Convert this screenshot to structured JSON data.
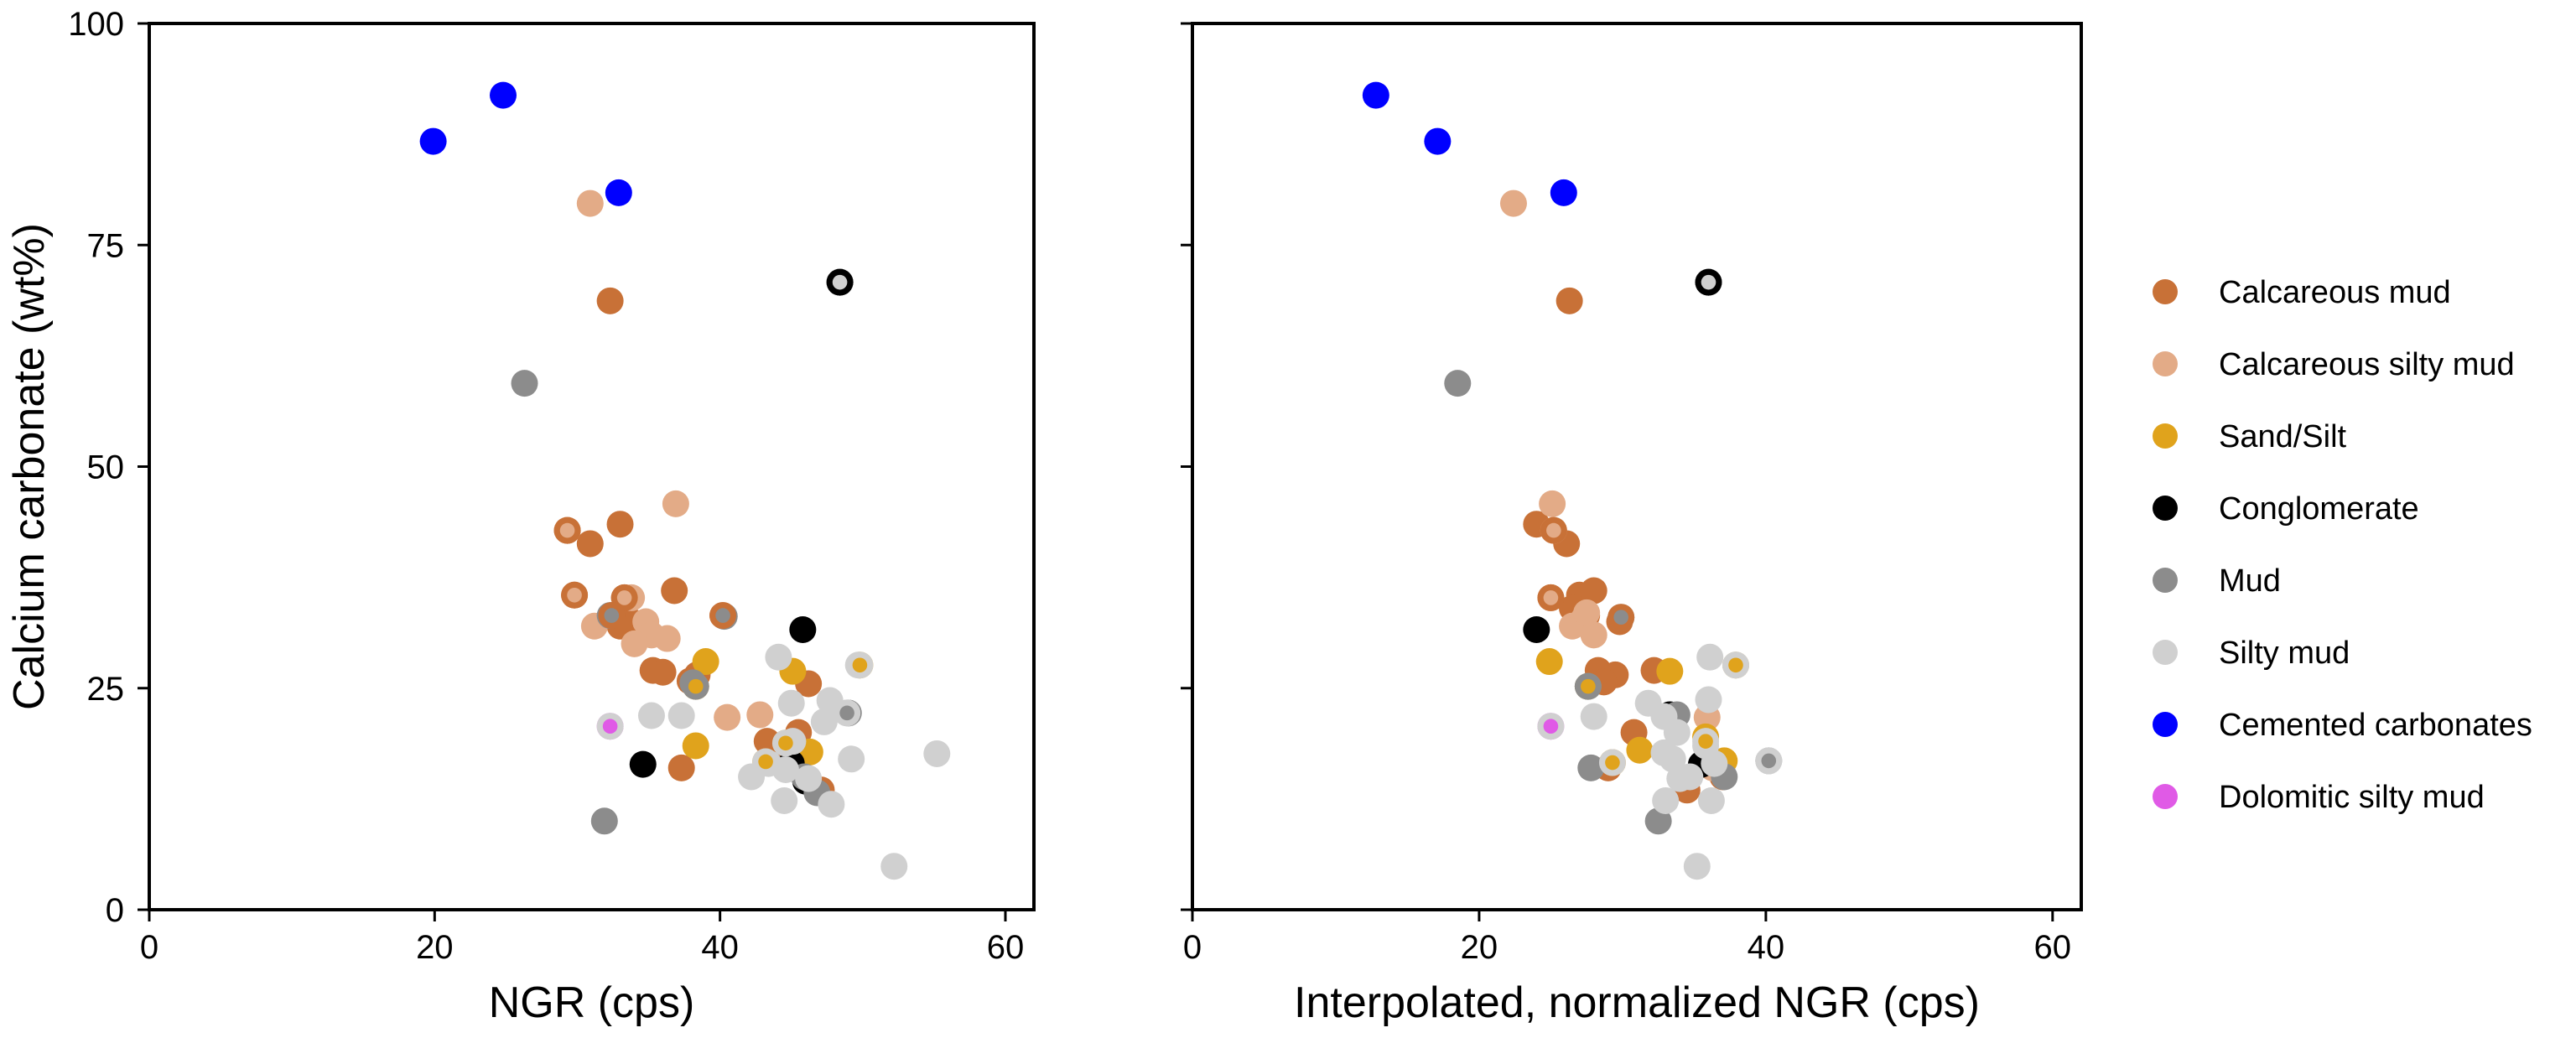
{
  "chart_data": [
    {
      "type": "scatter",
      "xlabel": "NGR (cps)",
      "ylabel": "Calcium carbonate (wt%)",
      "xlim": [
        0,
        62
      ],
      "ylim": [
        0,
        100
      ],
      "xticks": [
        "0",
        "20",
        "40",
        "60"
      ],
      "yticks": [
        "0",
        "25",
        "50",
        "75",
        "100"
      ],
      "series": [
        {
          "name": "Calcareous mud",
          "color": "#c87137",
          "points": [
            [
              32.3,
              68.7
            ],
            [
              29.3,
              42.8
            ],
            [
              30.9,
              41.3
            ],
            [
              33.0,
              43.5
            ],
            [
              29.8,
              35.5
            ],
            [
              32.4,
              33.2
            ],
            [
              33.3,
              35.2
            ],
            [
              33.8,
              32.5
            ],
            [
              34.3,
              30.8
            ],
            [
              36.8,
              36.0
            ],
            [
              38.4,
              26.5
            ],
            [
              35.3,
              27.0
            ],
            [
              36.0,
              26.8
            ],
            [
              37.3,
              16.0
            ],
            [
              40.2,
              33.2
            ],
            [
              43.3,
              19.0
            ],
            [
              44.3,
              17.5
            ],
            [
              46.2,
              25.5
            ],
            [
              45.5,
              20.0
            ],
            [
              47.1,
              13.5
            ],
            [
              33.0,
              32.0
            ],
            [
              37.9,
              25.8
            ]
          ]
        },
        {
          "name": "Calcareous silty mud",
          "color": "#e3ab87",
          "points": [
            [
              30.9,
              79.7
            ],
            [
              36.9,
              45.8
            ],
            [
              29.3,
              42.8
            ],
            [
              31.2,
              32.0
            ],
            [
              33.8,
              35.2
            ],
            [
              34.8,
              32.5
            ],
            [
              35.2,
              31.0
            ],
            [
              36.3,
              30.6
            ],
            [
              40.5,
              21.7
            ],
            [
              42.8,
              22.0
            ],
            [
              34.0,
              30.0
            ]
          ]
        },
        {
          "name": "Sand/Silt",
          "color": "#e0a31c",
          "points": [
            [
              38.3,
              18.5
            ],
            [
              39.0,
              28.0
            ],
            [
              38.3,
              25.2
            ],
            [
              45.1,
              26.9
            ],
            [
              46.3,
              17.8
            ],
            [
              43.2,
              16.7
            ],
            [
              44.6,
              18.8
            ],
            [
              49.8,
              27.6
            ],
            [
              45.4,
              16.0
            ]
          ]
        },
        {
          "name": "Conglomerate",
          "color": "#000000",
          "points": [
            [
              45.8,
              31.6
            ],
            [
              34.6,
              16.4
            ],
            [
              48.4,
              70.8
            ],
            [
              45.0,
              16.5
            ],
            [
              46.0,
              14.5
            ]
          ]
        },
        {
          "name": "Mud",
          "color": "#8c8c8c",
          "points": [
            [
              26.3,
              59.4
            ],
            [
              31.9,
              10.0
            ],
            [
              49.0,
              22.2
            ],
            [
              32.3,
              33.2
            ],
            [
              38.1,
              25.6
            ],
            [
              45.9,
              15.0
            ],
            [
              46.8,
              13.2
            ],
            [
              40.3,
              33.1
            ]
          ]
        },
        {
          "name": "Silty mud",
          "color": "#d0d0d0",
          "points": [
            [
              48.4,
              70.8
            ],
            [
              52.2,
              4.9
            ],
            [
              55.2,
              17.6
            ],
            [
              49.2,
              17.0
            ],
            [
              47.8,
              11.9
            ],
            [
              47.7,
              23.6
            ],
            [
              47.3,
              21.2
            ],
            [
              44.5,
              12.3
            ],
            [
              44.1,
              28.5
            ],
            [
              45.0,
              23.3
            ],
            [
              35.2,
              21.9
            ],
            [
              37.3,
              21.9
            ],
            [
              42.2,
              15.0
            ],
            [
              43.4,
              16.5
            ],
            [
              44.6,
              15.8
            ],
            [
              46.2,
              14.8
            ],
            [
              48.9,
              22.2
            ],
            [
              49.7,
              27.6
            ],
            [
              45.1,
              19.0
            ]
          ]
        },
        {
          "name": "Cemented carbonates",
          "color": "#0000ff",
          "points": [
            [
              19.9,
              86.7
            ],
            [
              24.8,
              91.9
            ],
            [
              32.9,
              80.9
            ]
          ]
        },
        {
          "name": "Dolomitic silty mud",
          "color": "#e05ae6",
          "points": [
            [
              32.3,
              20.7
            ]
          ]
        }
      ],
      "rings": [
        {
          "edge": "#c87137",
          "fill": "#e3ab87",
          "point": [
            29.3,
            42.8
          ]
        },
        {
          "edge": "#c87137",
          "fill": "#e3ab87",
          "point": [
            29.8,
            35.5
          ]
        },
        {
          "edge": "#c87137",
          "fill": "#e3ab87",
          "point": [
            33.3,
            35.2
          ]
        },
        {
          "edge": "#c87137",
          "fill": "#8c8c8c",
          "point": [
            32.4,
            33.2
          ]
        },
        {
          "edge": "#c87137",
          "fill": "#8c8c8c",
          "point": [
            40.2,
            33.2
          ]
        },
        {
          "edge": "#8c8c8c",
          "fill": "#e0a31c",
          "point": [
            38.3,
            25.2
          ]
        },
        {
          "edge": "#d0d0d0",
          "fill": "#e0a31c",
          "point": [
            43.2,
            16.7
          ]
        },
        {
          "edge": "#d0d0d0",
          "fill": "#e0a31c",
          "point": [
            44.6,
            18.8
          ]
        },
        {
          "edge": "#d0d0d0",
          "fill": "#e0a31c",
          "point": [
            49.8,
            27.6
          ]
        },
        {
          "edge": "#d0d0d0",
          "fill": "#8c8c8c",
          "point": [
            48.9,
            22.2
          ]
        },
        {
          "edge": "#d0d0d0",
          "fill": "#e05ae6",
          "point": [
            32.3,
            20.7
          ]
        },
        {
          "edge": "#000000",
          "fill": "#d0d0d0",
          "point": [
            48.4,
            70.8
          ]
        }
      ]
    },
    {
      "type": "scatter",
      "xlabel": "Interpolated, normalized NGR (cps)",
      "ylabel": "",
      "xlim": [
        0,
        62
      ],
      "ylim": [
        0,
        100
      ],
      "xticks": [
        "0",
        "20",
        "40",
        "60"
      ],
      "yticks": [],
      "series": [
        {
          "name": "Calcareous mud",
          "color": "#c87137",
          "points": [
            [
              26.3,
              68.7
            ],
            [
              24.0,
              43.5
            ],
            [
              26.1,
              41.3
            ],
            [
              25.0,
              35.2
            ],
            [
              27.0,
              35.5
            ],
            [
              28.0,
              36.0
            ],
            [
              27.5,
              33.2
            ],
            [
              29.8,
              32.5
            ],
            [
              28.3,
              27.0
            ],
            [
              29.5,
              26.5
            ],
            [
              28.7,
              25.7
            ],
            [
              29.0,
              16.0
            ],
            [
              30.8,
              20.0
            ],
            [
              32.2,
              27.0
            ],
            [
              34.5,
              13.5
            ],
            [
              37.0,
              15.0
            ],
            [
              26.5,
              34.0
            ]
          ]
        },
        {
          "name": "Calcareous silty mud",
          "color": "#e3ab87",
          "points": [
            [
              22.4,
              79.7
            ],
            [
              25.1,
              45.8
            ],
            [
              25.2,
              42.8
            ],
            [
              26.5,
              32.0
            ],
            [
              27.3,
              32.8
            ],
            [
              28.0,
              31.0
            ],
            [
              27.5,
              33.5
            ],
            [
              35.9,
              21.7
            ],
            [
              36.3,
              16.0
            ]
          ]
        },
        {
          "name": "Sand/Silt",
          "color": "#e0a31c",
          "points": [
            [
              24.9,
              28.0
            ],
            [
              33.3,
              26.9
            ],
            [
              31.2,
              18.0
            ],
            [
              35.8,
              19.5
            ],
            [
              37.1,
              16.8
            ],
            [
              37.9,
              27.6
            ],
            [
              29.3,
              16.6
            ],
            [
              27.6,
              25.2
            ]
          ]
        },
        {
          "name": "Conglomerate",
          "color": "#000000",
          "points": [
            [
              24.0,
              31.6
            ],
            [
              36.0,
              70.8
            ],
            [
              35.5,
              16.4
            ],
            [
              33.3,
              22.0
            ]
          ]
        },
        {
          "name": "Mud",
          "color": "#8c8c8c",
          "points": [
            [
              18.5,
              59.4
            ],
            [
              32.5,
              10.0
            ],
            [
              40.2,
              16.8
            ],
            [
              27.6,
              25.2
            ],
            [
              29.9,
              33.0
            ],
            [
              27.8,
              16.0
            ],
            [
              37.1,
              15.0
            ],
            [
              33.8,
              22.0
            ]
          ]
        },
        {
          "name": "Silty mud",
          "color": "#d0d0d0",
          "points": [
            [
              36.0,
              70.8
            ],
            [
              35.2,
              4.9
            ],
            [
              36.2,
              12.3
            ],
            [
              36.1,
              28.5
            ],
            [
              36.0,
              23.7
            ],
            [
              37.9,
              27.6
            ],
            [
              31.8,
              23.3
            ],
            [
              32.9,
              21.8
            ],
            [
              33.0,
              12.3
            ],
            [
              33.5,
              17.0
            ],
            [
              32.9,
              17.7
            ],
            [
              35.8,
              18.5
            ],
            [
              34.7,
              15.0
            ],
            [
              36.4,
              16.5
            ],
            [
              28.0,
              21.8
            ],
            [
              33.8,
              20.0
            ],
            [
              34.0,
              14.8
            ],
            [
              40.2,
              16.8
            ]
          ]
        },
        {
          "name": "Cemented carbonates",
          "color": "#0000ff",
          "points": [
            [
              12.8,
              91.9
            ],
            [
              17.1,
              86.7
            ],
            [
              25.9,
              80.9
            ]
          ]
        },
        {
          "name": "Dolomitic silty mud",
          "color": "#e05ae6",
          "points": [
            [
              25.0,
              20.7
            ]
          ]
        }
      ],
      "rings": [
        {
          "edge": "#c87137",
          "fill": "#e3ab87",
          "point": [
            25.2,
            42.8
          ]
        },
        {
          "edge": "#c87137",
          "fill": "#e3ab87",
          "point": [
            25.0,
            35.2
          ]
        },
        {
          "edge": "#c87137",
          "fill": "#8c8c8c",
          "point": [
            29.9,
            33.0
          ]
        },
        {
          "edge": "#8c8c8c",
          "fill": "#e0a31c",
          "point": [
            27.6,
            25.2
          ]
        },
        {
          "edge": "#d0d0d0",
          "fill": "#e0a31c",
          "point": [
            37.9,
            27.6
          ]
        },
        {
          "edge": "#d0d0d0",
          "fill": "#e0a31c",
          "point": [
            35.8,
            19.0
          ]
        },
        {
          "edge": "#d0d0d0",
          "fill": "#e0a31c",
          "point": [
            29.3,
            16.6
          ]
        },
        {
          "edge": "#d0d0d0",
          "fill": "#8c8c8c",
          "point": [
            40.2,
            16.8
          ]
        },
        {
          "edge": "#d0d0d0",
          "fill": "#e05ae6",
          "point": [
            25.0,
            20.7
          ]
        },
        {
          "edge": "#000000",
          "fill": "#d0d0d0",
          "point": [
            36.0,
            70.8
          ]
        }
      ]
    }
  ],
  "legend": {
    "placement": "right",
    "items": [
      {
        "label": "Calcareous mud",
        "color": "#c87137"
      },
      {
        "label": "Calcareous silty mud",
        "color": "#e3ab87"
      },
      {
        "label": "Sand/Silt",
        "color": "#e0a31c"
      },
      {
        "label": "Conglomerate",
        "color": "#000000"
      },
      {
        "label": "Mud",
        "color": "#8c8c8c"
      },
      {
        "label": "Silty mud",
        "color": "#d0d0d0"
      },
      {
        "label": "Cemented carbonates",
        "color": "#0000ff"
      },
      {
        "label": "Dolomitic silty mud",
        "color": "#e05ae6"
      }
    ]
  }
}
